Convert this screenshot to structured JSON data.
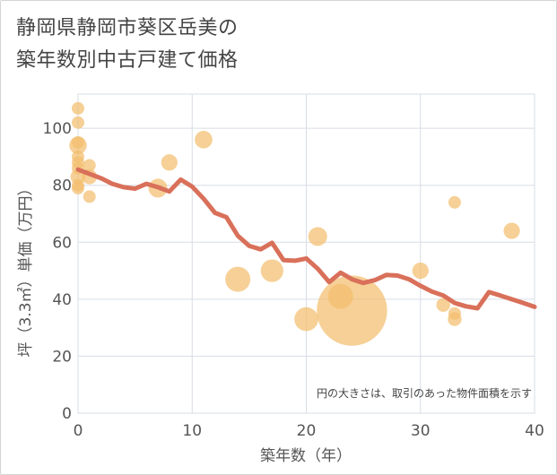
{
  "title": {
    "line1": "静岡県静岡市葵区岳美の",
    "line2": "築年数別中古戸建て価格"
  },
  "chart_data": {
    "type": "scatter+line",
    "xlabel": "築年数（年）",
    "ylabel": "坪（3.3㎡）単価（万円）",
    "xlim": [
      0,
      40
    ],
    "ylim": [
      0,
      112
    ],
    "xticks": [
      0,
      10,
      20,
      30,
      40
    ],
    "yticks": [
      0,
      20,
      40,
      60,
      80,
      100
    ],
    "grid": true,
    "note": "円の大きさは、取引のあった物件面積を示す",
    "colors": {
      "bubble": "#f3be6e",
      "line": "#d9705a",
      "grid": "#d7dde6",
      "axis_text": "#555555"
    },
    "scatter": [
      {
        "x": 0,
        "y": 107,
        "size": 1
      },
      {
        "x": 0,
        "y": 102,
        "size": 1
      },
      {
        "x": 0,
        "y": 95,
        "size": 1
      },
      {
        "x": 0,
        "y": 94,
        "size": 1.4
      },
      {
        "x": 0,
        "y": 90,
        "size": 1
      },
      {
        "x": 0,
        "y": 88,
        "size": 1
      },
      {
        "x": 0,
        "y": 86,
        "size": 1
      },
      {
        "x": 0,
        "y": 83,
        "size": 1.2
      },
      {
        "x": 0,
        "y": 80,
        "size": 1
      },
      {
        "x": 0,
        "y": 79,
        "size": 1
      },
      {
        "x": 1,
        "y": 87,
        "size": 1
      },
      {
        "x": 1,
        "y": 83,
        "size": 1.2
      },
      {
        "x": 1,
        "y": 76,
        "size": 1
      },
      {
        "x": 7,
        "y": 79,
        "size": 1.5
      },
      {
        "x": 8,
        "y": 88,
        "size": 1.3
      },
      {
        "x": 11,
        "y": 96,
        "size": 1.4
      },
      {
        "x": 14,
        "y": 47,
        "size": 2
      },
      {
        "x": 17,
        "y": 50,
        "size": 1.8
      },
      {
        "x": 20,
        "y": 33,
        "size": 1.9
      },
      {
        "x": 21,
        "y": 62,
        "size": 1.5
      },
      {
        "x": 23,
        "y": 41,
        "size": 2
      },
      {
        "x": 24,
        "y": 36,
        "size": 5.6
      },
      {
        "x": 30,
        "y": 50,
        "size": 1.3
      },
      {
        "x": 32,
        "y": 38,
        "size": 1.1
      },
      {
        "x": 33,
        "y": 74,
        "size": 1
      },
      {
        "x": 33,
        "y": 35,
        "size": 1
      },
      {
        "x": 33,
        "y": 33,
        "size": 1.1
      },
      {
        "x": 38,
        "y": 64,
        "size": 1.3
      }
    ],
    "line": [
      {
        "x": 0,
        "y": 85.5
      },
      {
        "x": 1,
        "y": 84
      },
      {
        "x": 2,
        "y": 82.5
      },
      {
        "x": 3,
        "y": 80.5
      },
      {
        "x": 4,
        "y": 79.3
      },
      {
        "x": 5,
        "y": 78.8
      },
      {
        "x": 6,
        "y": 80.5
      },
      {
        "x": 7,
        "y": 79.3
      },
      {
        "x": 8,
        "y": 77.8
      },
      {
        "x": 9,
        "y": 82
      },
      {
        "x": 10,
        "y": 79.5
      },
      {
        "x": 11,
        "y": 75.3
      },
      {
        "x": 12,
        "y": 70.3
      },
      {
        "x": 13,
        "y": 68.8
      },
      {
        "x": 14,
        "y": 62.3
      },
      {
        "x": 15,
        "y": 58.7
      },
      {
        "x": 16,
        "y": 57.5
      },
      {
        "x": 17,
        "y": 59.8
      },
      {
        "x": 18,
        "y": 53.7
      },
      {
        "x": 19,
        "y": 53.5
      },
      {
        "x": 20,
        "y": 54.3
      },
      {
        "x": 21,
        "y": 50.7
      },
      {
        "x": 22,
        "y": 46
      },
      {
        "x": 23,
        "y": 49.3
      },
      {
        "x": 24,
        "y": 47
      },
      {
        "x": 25,
        "y": 45.7
      },
      {
        "x": 26,
        "y": 46.7
      },
      {
        "x": 27,
        "y": 48.5
      },
      {
        "x": 28,
        "y": 48.3
      },
      {
        "x": 29,
        "y": 47
      },
      {
        "x": 30,
        "y": 44.7
      },
      {
        "x": 31,
        "y": 42.7
      },
      {
        "x": 32,
        "y": 41.3
      },
      {
        "x": 33,
        "y": 38.7
      },
      {
        "x": 34,
        "y": 37.5
      },
      {
        "x": 35,
        "y": 36.8
      },
      {
        "x": 36,
        "y": 42.5
      },
      {
        "x": 37,
        "y": 41.3
      },
      {
        "x": 38,
        "y": 40
      },
      {
        "x": 39,
        "y": 38.7
      },
      {
        "x": 40,
        "y": 37.3
      }
    ]
  }
}
